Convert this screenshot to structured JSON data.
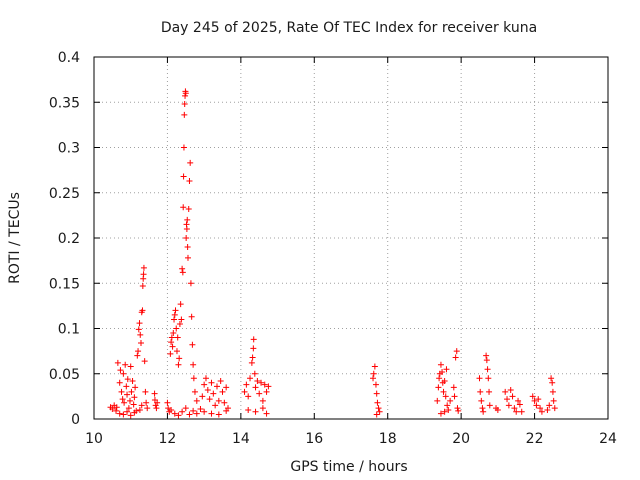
{
  "chart_data": {
    "type": "scatter",
    "title": "Day 245 of 2025, Rate Of TEC Index for receiver kuna",
    "xlabel": "GPS time / hours",
    "ylabel": "ROTI / TECUs",
    "xlim": [
      10,
      24
    ],
    "ylim": [
      0,
      0.4
    ],
    "x_ticks": [
      10,
      12,
      14,
      16,
      18,
      20,
      22,
      24
    ],
    "x_tick_labels": [
      "10",
      "12",
      "14",
      "16",
      "18",
      "20",
      "22",
      "24"
    ],
    "y_ticks": [
      0,
      0.05,
      0.1,
      0.15,
      0.2,
      0.25,
      0.3,
      0.35,
      0.4
    ],
    "y_tick_labels": [
      "0",
      "0.05",
      "0.1",
      "0.15",
      "0.2",
      "0.25",
      "0.3",
      "0.35",
      "0.4"
    ],
    "grid": true,
    "marker": "+",
    "marker_color": "#ff0000",
    "series": [
      {
        "points": [
          [
            10.45,
            0.013
          ],
          [
            10.5,
            0.011
          ],
          [
            10.55,
            0.015
          ],
          [
            10.6,
            0.009
          ],
          [
            10.62,
            0.013
          ],
          [
            10.65,
            0.062
          ],
          [
            10.7,
            0.04
          ],
          [
            10.72,
            0.054
          ],
          [
            10.75,
            0.03
          ],
          [
            10.78,
            0.022
          ],
          [
            10.8,
            0.05
          ],
          [
            10.82,
            0.018
          ],
          [
            10.85,
            0.06
          ],
          [
            10.88,
            0.036
          ],
          [
            10.9,
            0.027
          ],
          [
            10.92,
            0.044
          ],
          [
            10.95,
            0.012
          ],
          [
            10.98,
            0.02
          ],
          [
            11.0,
            0.058
          ],
          [
            11.02,
            0.03
          ],
          [
            11.05,
            0.042
          ],
          [
            11.08,
            0.016
          ],
          [
            11.1,
            0.024
          ],
          [
            11.12,
            0.035
          ],
          [
            11.15,
            0.009
          ],
          [
            11.18,
            0.07
          ],
          [
            11.2,
            0.075
          ],
          [
            11.22,
            0.099
          ],
          [
            11.24,
            0.106
          ],
          [
            11.26,
            0.093
          ],
          [
            11.28,
            0.084
          ],
          [
            11.3,
            0.118
          ],
          [
            11.32,
            0.12
          ],
          [
            11.33,
            0.147
          ],
          [
            11.34,
            0.155
          ],
          [
            11.35,
            0.16
          ],
          [
            11.36,
            0.167
          ],
          [
            11.38,
            0.064
          ],
          [
            11.4,
            0.03
          ],
          [
            11.42,
            0.018
          ],
          [
            11.45,
            0.012
          ],
          [
            10.7,
            0.006
          ],
          [
            10.8,
            0.005
          ],
          [
            10.9,
            0.008
          ],
          [
            11.0,
            0.004
          ],
          [
            11.1,
            0.007
          ],
          [
            11.25,
            0.01
          ],
          [
            11.3,
            0.015
          ],
          [
            11.65,
            0.028
          ],
          [
            11.66,
            0.021
          ],
          [
            11.68,
            0.015
          ],
          [
            11.7,
            0.012
          ],
          [
            11.72,
            0.018
          ],
          [
            12.0,
            0.018
          ],
          [
            12.02,
            0.012
          ],
          [
            12.05,
            0.008
          ],
          [
            12.08,
            0.072
          ],
          [
            12.1,
            0.085
          ],
          [
            12.12,
            0.09
          ],
          [
            12.14,
            0.08
          ],
          [
            12.16,
            0.095
          ],
          [
            12.18,
            0.11
          ],
          [
            12.2,
            0.115
          ],
          [
            12.22,
            0.12
          ],
          [
            12.24,
            0.1
          ],
          [
            12.26,
            0.075
          ],
          [
            12.28,
            0.09
          ],
          [
            12.3,
            0.06
          ],
          [
            12.32,
            0.067
          ],
          [
            12.34,
            0.105
          ],
          [
            12.36,
            0.127
          ],
          [
            12.38,
            0.11
          ],
          [
            12.4,
            0.166
          ],
          [
            12.42,
            0.162
          ],
          [
            12.43,
            0.234
          ],
          [
            12.44,
            0.268
          ],
          [
            12.45,
            0.3
          ],
          [
            12.46,
            0.336
          ],
          [
            12.47,
            0.348
          ],
          [
            12.48,
            0.357
          ],
          [
            12.49,
            0.362
          ],
          [
            12.5,
            0.36
          ],
          [
            12.51,
            0.2
          ],
          [
            12.52,
            0.215
          ],
          [
            12.53,
            0.21
          ],
          [
            12.54,
            0.22
          ],
          [
            12.55,
            0.19
          ],
          [
            12.56,
            0.178
          ],
          [
            12.58,
            0.232
          ],
          [
            12.6,
            0.263
          ],
          [
            12.62,
            0.283
          ],
          [
            12.64,
            0.15
          ],
          [
            12.66,
            0.113
          ],
          [
            12.68,
            0.082
          ],
          [
            12.7,
            0.06
          ],
          [
            12.72,
            0.045
          ],
          [
            12.75,
            0.03
          ],
          [
            12.8,
            0.02
          ],
          [
            12.1,
            0.01
          ],
          [
            12.2,
            0.006
          ],
          [
            12.3,
            0.004
          ],
          [
            12.4,
            0.008
          ],
          [
            12.5,
            0.012
          ],
          [
            12.6,
            0.005
          ],
          [
            12.7,
            0.009
          ],
          [
            12.8,
            0.006
          ],
          [
            12.9,
            0.011
          ],
          [
            12.95,
            0.025
          ],
          [
            13.0,
            0.038
          ],
          [
            13.05,
            0.045
          ],
          [
            13.1,
            0.032
          ],
          [
            13.15,
            0.022
          ],
          [
            13.2,
            0.04
          ],
          [
            13.25,
            0.028
          ],
          [
            13.3,
            0.015
          ],
          [
            13.35,
            0.036
          ],
          [
            13.4,
            0.02
          ],
          [
            13.45,
            0.042
          ],
          [
            13.5,
            0.03
          ],
          [
            13.55,
            0.018
          ],
          [
            13.6,
            0.035
          ],
          [
            13.65,
            0.012
          ],
          [
            13.0,
            0.008
          ],
          [
            13.2,
            0.006
          ],
          [
            13.4,
            0.005
          ],
          [
            13.6,
            0.009
          ],
          [
            14.1,
            0.03
          ],
          [
            14.15,
            0.038
          ],
          [
            14.2,
            0.025
          ],
          [
            14.25,
            0.045
          ],
          [
            14.3,
            0.062
          ],
          [
            14.32,
            0.068
          ],
          [
            14.34,
            0.078
          ],
          [
            14.35,
            0.088
          ],
          [
            14.38,
            0.05
          ],
          [
            14.4,
            0.035
          ],
          [
            14.45,
            0.042
          ],
          [
            14.5,
            0.028
          ],
          [
            14.55,
            0.04
          ],
          [
            14.6,
            0.02
          ],
          [
            14.65,
            0.038
          ],
          [
            14.7,
            0.03
          ],
          [
            14.75,
            0.036
          ],
          [
            14.2,
            0.01
          ],
          [
            14.4,
            0.008
          ],
          [
            14.6,
            0.012
          ],
          [
            14.7,
            0.006
          ],
          [
            17.6,
            0.045
          ],
          [
            17.62,
            0.05
          ],
          [
            17.65,
            0.058
          ],
          [
            17.68,
            0.038
          ],
          [
            17.7,
            0.028
          ],
          [
            17.72,
            0.018
          ],
          [
            17.75,
            0.012
          ],
          [
            17.78,
            0.008
          ],
          [
            17.7,
            0.005
          ],
          [
            19.35,
            0.02
          ],
          [
            19.38,
            0.035
          ],
          [
            19.4,
            0.045
          ],
          [
            19.42,
            0.05
          ],
          [
            19.45,
            0.06
          ],
          [
            19.48,
            0.052
          ],
          [
            19.5,
            0.04
          ],
          [
            19.52,
            0.03
          ],
          [
            19.55,
            0.042
          ],
          [
            19.58,
            0.025
          ],
          [
            19.6,
            0.055
          ],
          [
            19.62,
            0.015
          ],
          [
            19.65,
            0.01
          ],
          [
            19.7,
            0.02
          ],
          [
            19.45,
            0.006
          ],
          [
            19.55,
            0.008
          ],
          [
            19.8,
            0.035
          ],
          [
            19.82,
            0.025
          ],
          [
            19.85,
            0.068
          ],
          [
            19.88,
            0.075
          ],
          [
            19.9,
            0.012
          ],
          [
            19.92,
            0.009
          ],
          [
            20.5,
            0.045
          ],
          [
            20.52,
            0.03
          ],
          [
            20.55,
            0.02
          ],
          [
            20.58,
            0.012
          ],
          [
            20.6,
            0.008
          ],
          [
            20.68,
            0.07
          ],
          [
            20.7,
            0.065
          ],
          [
            20.72,
            0.055
          ],
          [
            20.74,
            0.045
          ],
          [
            20.76,
            0.03
          ],
          [
            20.78,
            0.015
          ],
          [
            20.95,
            0.012
          ],
          [
            21.0,
            0.01
          ],
          [
            21.2,
            0.03
          ],
          [
            21.25,
            0.022
          ],
          [
            21.3,
            0.015
          ],
          [
            21.35,
            0.032
          ],
          [
            21.4,
            0.025
          ],
          [
            21.45,
            0.012
          ],
          [
            21.5,
            0.008
          ],
          [
            21.55,
            0.02
          ],
          [
            21.6,
            0.016
          ],
          [
            21.65,
            0.008
          ],
          [
            21.95,
            0.025
          ],
          [
            22.0,
            0.02
          ],
          [
            22.05,
            0.015
          ],
          [
            22.1,
            0.022
          ],
          [
            22.15,
            0.012
          ],
          [
            22.2,
            0.008
          ],
          [
            22.35,
            0.01
          ],
          [
            22.4,
            0.015
          ],
          [
            22.45,
            0.045
          ],
          [
            22.48,
            0.04
          ],
          [
            22.5,
            0.03
          ],
          [
            22.52,
            0.02
          ],
          [
            22.55,
            0.012
          ]
        ]
      }
    ]
  }
}
